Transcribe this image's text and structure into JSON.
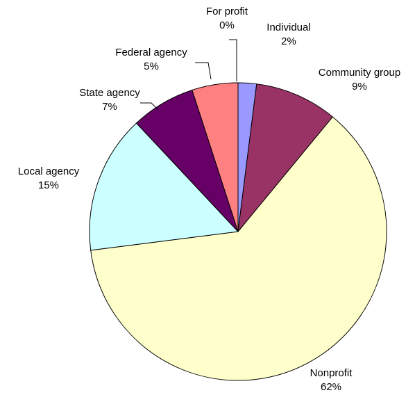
{
  "chart_data": {
    "type": "pie",
    "title": "",
    "start_angle_deg": 0,
    "direction": "clockwise",
    "slices": [
      {
        "label": "Individual",
        "value": 2,
        "display": "2%",
        "color": "#9999ff"
      },
      {
        "label": "Community group",
        "value": 9,
        "display": "9%",
        "color": "#993366"
      },
      {
        "label": "Nonprofit",
        "value": 62,
        "display": "62%",
        "color": "#ffffcc"
      },
      {
        "label": "Local agency",
        "value": 15,
        "display": "15%",
        "color": "#ccffff"
      },
      {
        "label": "State agency",
        "value": 7,
        "display": "7%",
        "color": "#660066"
      },
      {
        "label": "Federal agency",
        "value": 5,
        "display": "5%",
        "color": "#ff8080"
      },
      {
        "label": "For profit",
        "value": 0,
        "display": "0%",
        "color": "#0066cc"
      }
    ],
    "legend": "none",
    "leader_lines": true
  }
}
